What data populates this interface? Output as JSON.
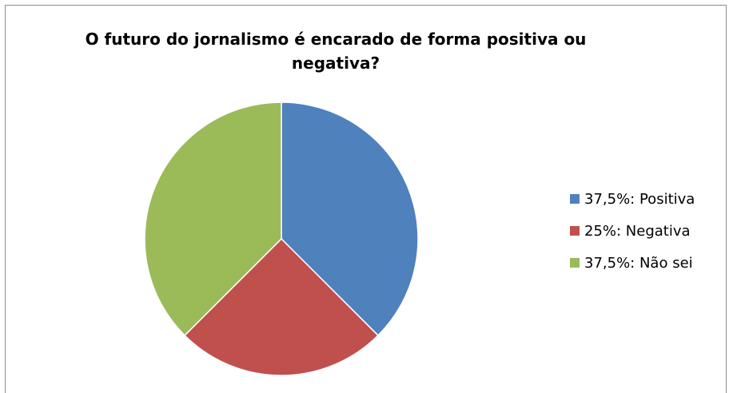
{
  "chart_data": {
    "type": "pie",
    "title_lines": [
      "O futuro do jornalismo é encarado de forma positiva ou",
      "negativa?"
    ],
    "slices": [
      {
        "label": "37,5%: Positiva",
        "value": 37.5,
        "color": "#4f81bd"
      },
      {
        "label": "25%: Negativa",
        "value": 25,
        "color": "#c0504d"
      },
      {
        "label": "37,5%: Não sei",
        "value": 37.5,
        "color": "#9bbb59"
      }
    ],
    "legend_position": "right"
  }
}
